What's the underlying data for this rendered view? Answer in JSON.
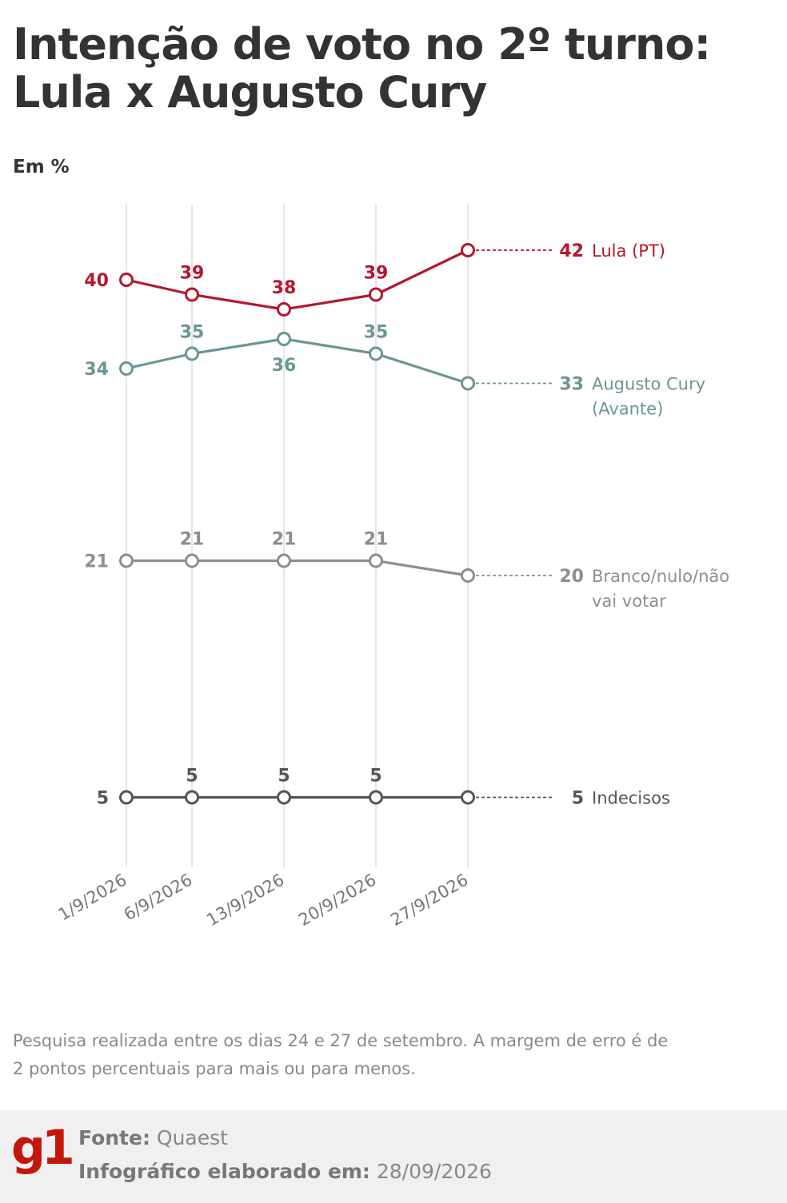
{
  "title_line1": "Intenção de voto no 2º turno:",
  "title_line2": "Lula x Augusto Cury",
  "unit_label": "Em %",
  "chart_data": {
    "type": "line",
    "x": [
      "1/9/2026",
      "6/9/2026",
      "13/9/2026",
      "20/9/2026",
      "27/9/2026"
    ],
    "ylabel": "Em %",
    "ylim": [
      0,
      45
    ],
    "grid": "vertical",
    "series": [
      {
        "name": "Lula (PT)",
        "label_lines": [
          "Lula (PT)"
        ],
        "color": "#b5172e",
        "values": [
          40,
          39,
          38,
          39,
          42
        ]
      },
      {
        "name": "Augusto Cury (Avante)",
        "label_lines": [
          "Augusto Cury",
          "(Avante)"
        ],
        "color": "#6b9595",
        "values": [
          34,
          35,
          36,
          35,
          33
        ]
      },
      {
        "name": "Branco/nulo/não vai votar",
        "label_lines": [
          "Branco/nulo/não",
          "vai votar"
        ],
        "color": "#8e8e8e",
        "values": [
          21,
          21,
          21,
          21,
          20
        ]
      },
      {
        "name": "Indecisos",
        "label_lines": [
          "Indecisos"
        ],
        "color": "#555555",
        "values": [
          5,
          5,
          5,
          5,
          5
        ]
      }
    ]
  },
  "note": "Pesquisa realizada entre os dias 24 e 27 de setembro. A margem de erro é de 2 pontos percentuais para mais ou para menos.",
  "footer": {
    "logo": "g1",
    "source_label": "Fonte:",
    "source_value": "Quaest",
    "date_label": "Infográfico elaborado em:",
    "date_value": "28/09/2026"
  }
}
